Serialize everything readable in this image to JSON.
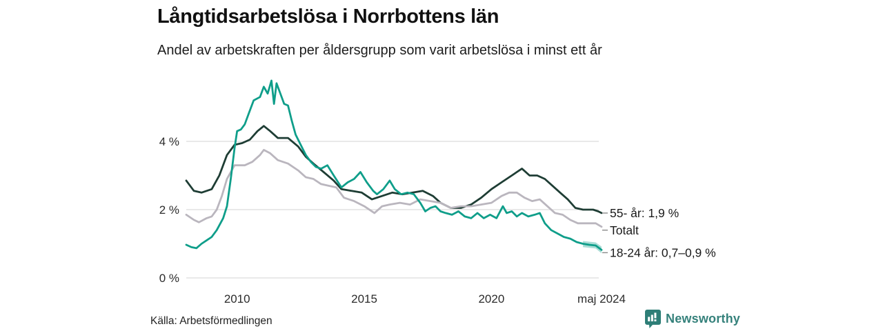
{
  "header": {
    "title": "Långtidsarbetslösa i Norrbottens län",
    "subtitle": "Andel av arbetskraften per åldersgrupp som varit arbetslösa i minst ett år"
  },
  "footer": {
    "source": "Källa: Arbetsförmedlingen",
    "brand": "Newsworthy",
    "brand_color": "#35817b",
    "logo_color": "#2e7e77"
  },
  "chart_data": {
    "type": "line",
    "title": "Långtidsarbetslösa i Norrbottens län",
    "subtitle": "Andel av arbetskraften per åldersgrupp som varit arbetslösa i minst ett år",
    "xlabel": "",
    "ylabel": "",
    "x_unit": "decimal_year",
    "x_range": [
      2008.0,
      2024.42
    ],
    "ylim": [
      0,
      6
    ],
    "grid": "horizontal",
    "grid_color": "#dcdcdc",
    "y_ticks": [
      {
        "value": 0,
        "label": "0 %"
      },
      {
        "value": 2,
        "label": "2 %"
      },
      {
        "value": 4,
        "label": "4 %"
      }
    ],
    "x_ticks": [
      {
        "value": 2010.0,
        "label": "2010"
      },
      {
        "value": 2015.0,
        "label": "2015"
      },
      {
        "value": 2020.0,
        "label": "2020"
      },
      {
        "value": 2024.33,
        "label": "maj 2024"
      }
    ],
    "series": [
      {
        "name": "55- år",
        "end_label": "55- år: 1,9 %",
        "color": "#1e3d34",
        "x": [
          2008.0,
          2008.3,
          2008.6,
          2009.0,
          2009.3,
          2009.6,
          2009.9,
          2010.2,
          2010.5,
          2010.8,
          2011.05,
          2011.3,
          2011.6,
          2012.0,
          2012.4,
          2012.7,
          2013.0,
          2013.4,
          2013.8,
          2014.1,
          2014.5,
          2014.9,
          2015.3,
          2015.7,
          2016.1,
          2016.5,
          2016.9,
          2017.3,
          2017.7,
          2018.0,
          2018.4,
          2018.8,
          2019.2,
          2019.6,
          2020.0,
          2020.4,
          2020.8,
          2021.0,
          2021.2,
          2021.5,
          2021.8,
          2022.1,
          2022.4,
          2022.7,
          2023.0,
          2023.3,
          2023.6,
          2024.0,
          2024.2,
          2024.33
        ],
        "values": [
          2.85,
          2.55,
          2.5,
          2.6,
          3.0,
          3.6,
          3.9,
          3.95,
          4.05,
          4.3,
          4.45,
          4.3,
          4.1,
          4.1,
          3.85,
          3.55,
          3.35,
          3.1,
          2.85,
          2.6,
          2.55,
          2.5,
          2.3,
          2.4,
          2.5,
          2.45,
          2.5,
          2.55,
          2.4,
          2.2,
          2.05,
          2.05,
          2.15,
          2.35,
          2.6,
          2.8,
          3.0,
          3.1,
          3.2,
          3.0,
          3.0,
          2.9,
          2.7,
          2.5,
          2.3,
          2.05,
          2.0,
          2.0,
          1.95,
          1.9
        ]
      },
      {
        "name": "Totalt",
        "end_label": "Totalt",
        "color": "#bab6be",
        "x": [
          2008.0,
          2008.3,
          2008.5,
          2008.8,
          2009.0,
          2009.2,
          2009.4,
          2009.6,
          2009.9,
          2010.3,
          2010.6,
          2010.9,
          2011.05,
          2011.3,
          2011.6,
          2012.0,
          2012.4,
          2012.7,
          2013.0,
          2013.3,
          2013.6,
          2013.9,
          2014.2,
          2014.6,
          2015.0,
          2015.4,
          2015.7,
          2016.0,
          2016.4,
          2016.8,
          2017.2,
          2017.6,
          2018.0,
          2018.4,
          2018.8,
          2019.2,
          2019.6,
          2020.0,
          2020.4,
          2020.7,
          2021.0,
          2021.3,
          2021.6,
          2021.9,
          2022.2,
          2022.5,
          2022.8,
          2023.1,
          2023.4,
          2023.8,
          2024.1,
          2024.33
        ],
        "values": [
          1.85,
          1.7,
          1.63,
          1.75,
          1.8,
          2.0,
          2.4,
          2.9,
          3.3,
          3.3,
          3.4,
          3.6,
          3.75,
          3.65,
          3.45,
          3.35,
          3.15,
          2.95,
          2.9,
          2.75,
          2.7,
          2.65,
          2.35,
          2.25,
          2.1,
          1.9,
          2.1,
          2.15,
          2.2,
          2.15,
          2.3,
          2.25,
          2.2,
          2.05,
          2.1,
          2.1,
          2.15,
          2.2,
          2.4,
          2.5,
          2.5,
          2.35,
          2.25,
          2.3,
          2.1,
          1.9,
          1.85,
          1.7,
          1.6,
          1.6,
          1.6,
          1.5
        ]
      },
      {
        "name": "18-24 år",
        "end_label": "18-24 år: 0,7–0,9 %",
        "color": "#0f9e8a",
        "x": [
          2008.0,
          2008.2,
          2008.4,
          2008.6,
          2008.8,
          2009.0,
          2009.2,
          2009.45,
          2009.6,
          2009.75,
          2009.9,
          2010.0,
          2010.15,
          2010.3,
          2010.45,
          2010.65,
          2010.9,
          2011.05,
          2011.2,
          2011.35,
          2011.45,
          2011.55,
          2011.7,
          2011.85,
          2012.0,
          2012.15,
          2012.3,
          2012.5,
          2012.7,
          2012.9,
          2013.1,
          2013.3,
          2013.55,
          2013.8,
          2014.1,
          2014.35,
          2014.6,
          2014.85,
          2015.1,
          2015.35,
          2015.5,
          2015.75,
          2016.0,
          2016.2,
          2016.45,
          2016.7,
          2016.95,
          2017.2,
          2017.4,
          2017.6,
          2017.8,
          2018.0,
          2018.2,
          2018.45,
          2018.7,
          2018.95,
          2019.2,
          2019.45,
          2019.7,
          2019.95,
          2020.2,
          2020.45,
          2020.6,
          2020.8,
          2021.0,
          2021.2,
          2021.45,
          2021.7,
          2021.9,
          2022.1,
          2022.35,
          2022.6,
          2022.85,
          2023.1,
          2023.35,
          2023.6,
          2023.85,
          2024.1,
          2024.33
        ],
        "values": [
          0.97,
          0.9,
          0.87,
          1.0,
          1.1,
          1.2,
          1.4,
          1.75,
          2.1,
          2.9,
          3.8,
          4.3,
          4.35,
          4.5,
          4.8,
          5.2,
          5.3,
          5.6,
          5.4,
          5.78,
          5.1,
          5.7,
          5.4,
          5.1,
          5.05,
          4.6,
          4.2,
          3.9,
          3.6,
          3.4,
          3.25,
          3.2,
          3.3,
          3.0,
          2.65,
          2.8,
          2.9,
          3.1,
          2.8,
          2.55,
          2.45,
          2.6,
          2.85,
          2.6,
          2.45,
          2.5,
          2.45,
          2.2,
          1.95,
          2.05,
          2.1,
          1.95,
          1.9,
          1.85,
          1.95,
          1.8,
          1.75,
          1.9,
          1.75,
          1.85,
          1.75,
          2.1,
          1.9,
          1.95,
          1.8,
          1.9,
          1.8,
          1.85,
          1.9,
          1.6,
          1.4,
          1.3,
          1.2,
          1.15,
          1.05,
          1.0,
          0.97,
          0.95,
          0.82
        ],
        "band": {
          "x": [
            2023.6,
            2023.85,
            2024.1,
            2024.33
          ],
          "upper": [
            1.08,
            1.06,
            1.04,
            0.92
          ],
          "lower": [
            0.9,
            0.88,
            0.86,
            0.72
          ]
        }
      }
    ]
  }
}
